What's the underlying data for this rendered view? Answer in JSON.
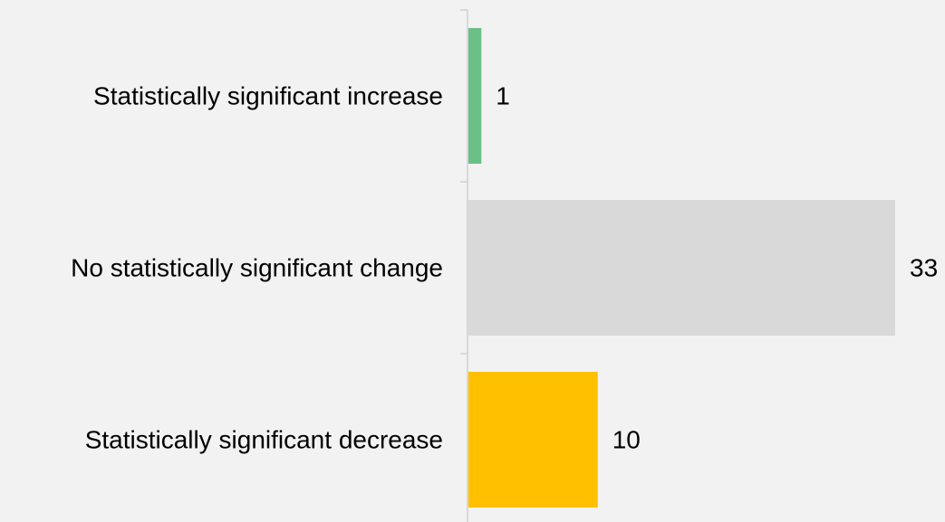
{
  "chart_data": {
    "type": "bar",
    "orientation": "horizontal",
    "categories": [
      "Statistically significant increase",
      "No statistically significant change",
      "Statistically significant decrease"
    ],
    "values": [
      1,
      33,
      10
    ],
    "colors": [
      "#6abf86",
      "#d9d9d9",
      "#ffc000"
    ],
    "background": "#f2f2f2",
    "xlim": [
      0,
      33
    ],
    "grid": false,
    "legend": "none",
    "title": "",
    "xlabel": "",
    "ylabel": ""
  }
}
